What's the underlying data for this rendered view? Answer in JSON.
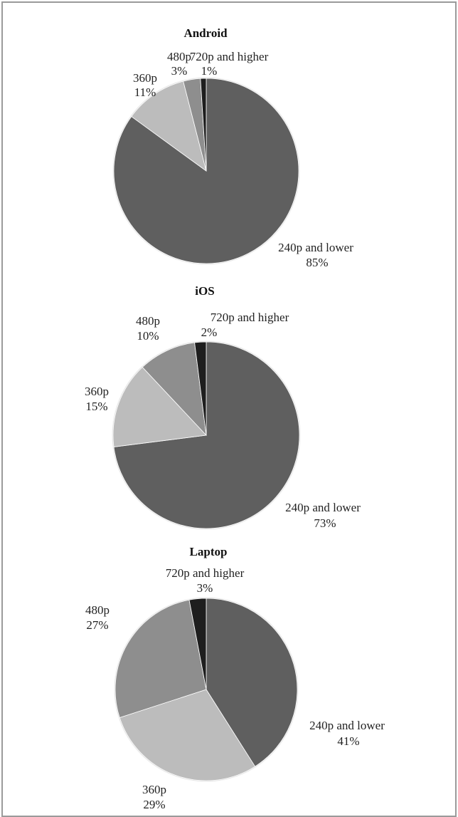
{
  "chart_data": [
    {
      "type": "pie",
      "title": "Android",
      "slices": [
        {
          "label": "240p and lower",
          "value": 85,
          "value_text": "85%",
          "color": "#5f5f5f"
        },
        {
          "label": "360p",
          "value": 11,
          "value_text": "11%",
          "color": "#bcbcbc"
        },
        {
          "label": "480p",
          "value": 3,
          "value_text": "3%",
          "color": "#8e8e8e"
        },
        {
          "label": "720p and higher",
          "value": 1,
          "value_text": "1%",
          "color": "#1e1e1e"
        }
      ]
    },
    {
      "type": "pie",
      "title": "iOS",
      "slices": [
        {
          "label": "240p and lower",
          "value": 73,
          "value_text": "73%",
          "color": "#5f5f5f"
        },
        {
          "label": "360p",
          "value": 15,
          "value_text": "15%",
          "color": "#bcbcbc"
        },
        {
          "label": "480p",
          "value": 10,
          "value_text": "10%",
          "color": "#8e8e8e"
        },
        {
          "label": "720p and higher",
          "value": 2,
          "value_text": "2%",
          "color": "#1e1e1e"
        }
      ]
    },
    {
      "type": "pie",
      "title": "Laptop",
      "slices": [
        {
          "label": "240p and lower",
          "value": 41,
          "value_text": "41%",
          "color": "#5f5f5f"
        },
        {
          "label": "360p",
          "value": 29,
          "value_text": "29%",
          "color": "#bcbcbc"
        },
        {
          "label": "480p",
          "value": 27,
          "value_text": "27%",
          "color": "#8e8e8e"
        },
        {
          "label": "720p and higher",
          "value": 3,
          "value_text": "3%",
          "color": "#1e1e1e"
        }
      ]
    }
  ]
}
